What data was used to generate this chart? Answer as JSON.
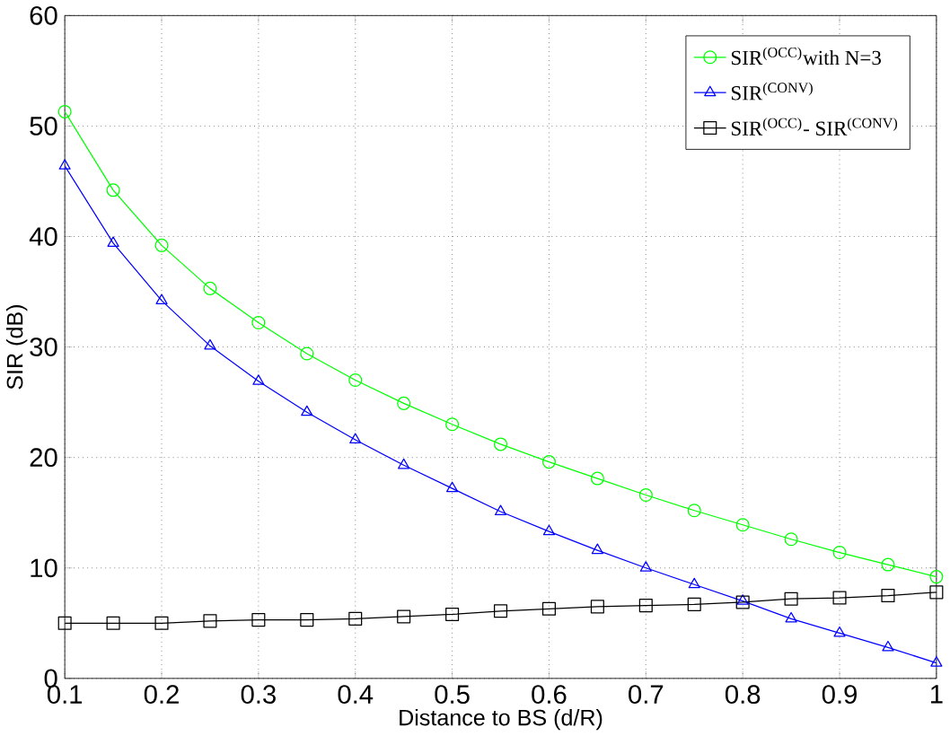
{
  "chart_data": {
    "type": "line",
    "xlabel": "Distance to BS (d/R)",
    "ylabel": "SIR (dB)",
    "x": [
      0.1,
      0.15,
      0.2,
      0.25,
      0.3,
      0.35,
      0.4,
      0.45,
      0.5,
      0.55,
      0.6,
      0.65,
      0.7,
      0.75,
      0.8,
      0.85,
      0.9,
      0.95,
      1.0
    ],
    "series": [
      {
        "name": "SIR$^{(OCC)}$with  N=3",
        "color": "#00ff00",
        "marker": "circle",
        "values": [
          51.3,
          44.2,
          39.2,
          35.3,
          32.2,
          29.4,
          27.0,
          24.9,
          23.0,
          21.2,
          19.6,
          18.1,
          16.6,
          15.2,
          13.9,
          12.6,
          11.4,
          10.3,
          9.2
        ]
      },
      {
        "name": "SIR$^{(CONV)}$",
        "color": "#0000ff",
        "marker": "triangle",
        "values": [
          46.4,
          39.4,
          34.2,
          30.1,
          26.9,
          24.1,
          21.6,
          19.3,
          17.2,
          15.1,
          13.3,
          11.6,
          10.0,
          8.5,
          7.0,
          5.4,
          4.1,
          2.8,
          1.4
        ]
      },
      {
        "name": "SIR$^{(OCC)}$- SIR$^{(CONV)}$",
        "color": "#000000",
        "marker": "square",
        "values": [
          5.0,
          5.0,
          5.0,
          5.2,
          5.3,
          5.3,
          5.4,
          5.6,
          5.8,
          6.1,
          6.3,
          6.5,
          6.6,
          6.7,
          6.9,
          7.2,
          7.3,
          7.5,
          7.8
        ]
      }
    ],
    "xlim": [
      0.1,
      1
    ],
    "ylim": [
      0,
      60
    ],
    "xticks": [
      0.1,
      0.2,
      0.3,
      0.4,
      0.5,
      0.6,
      0.7,
      0.8,
      0.9,
      1
    ],
    "yticks": [
      0,
      10,
      20,
      30,
      40,
      50,
      60
    ],
    "grid": true,
    "legend": "top right",
    "line_style": "solid"
  }
}
